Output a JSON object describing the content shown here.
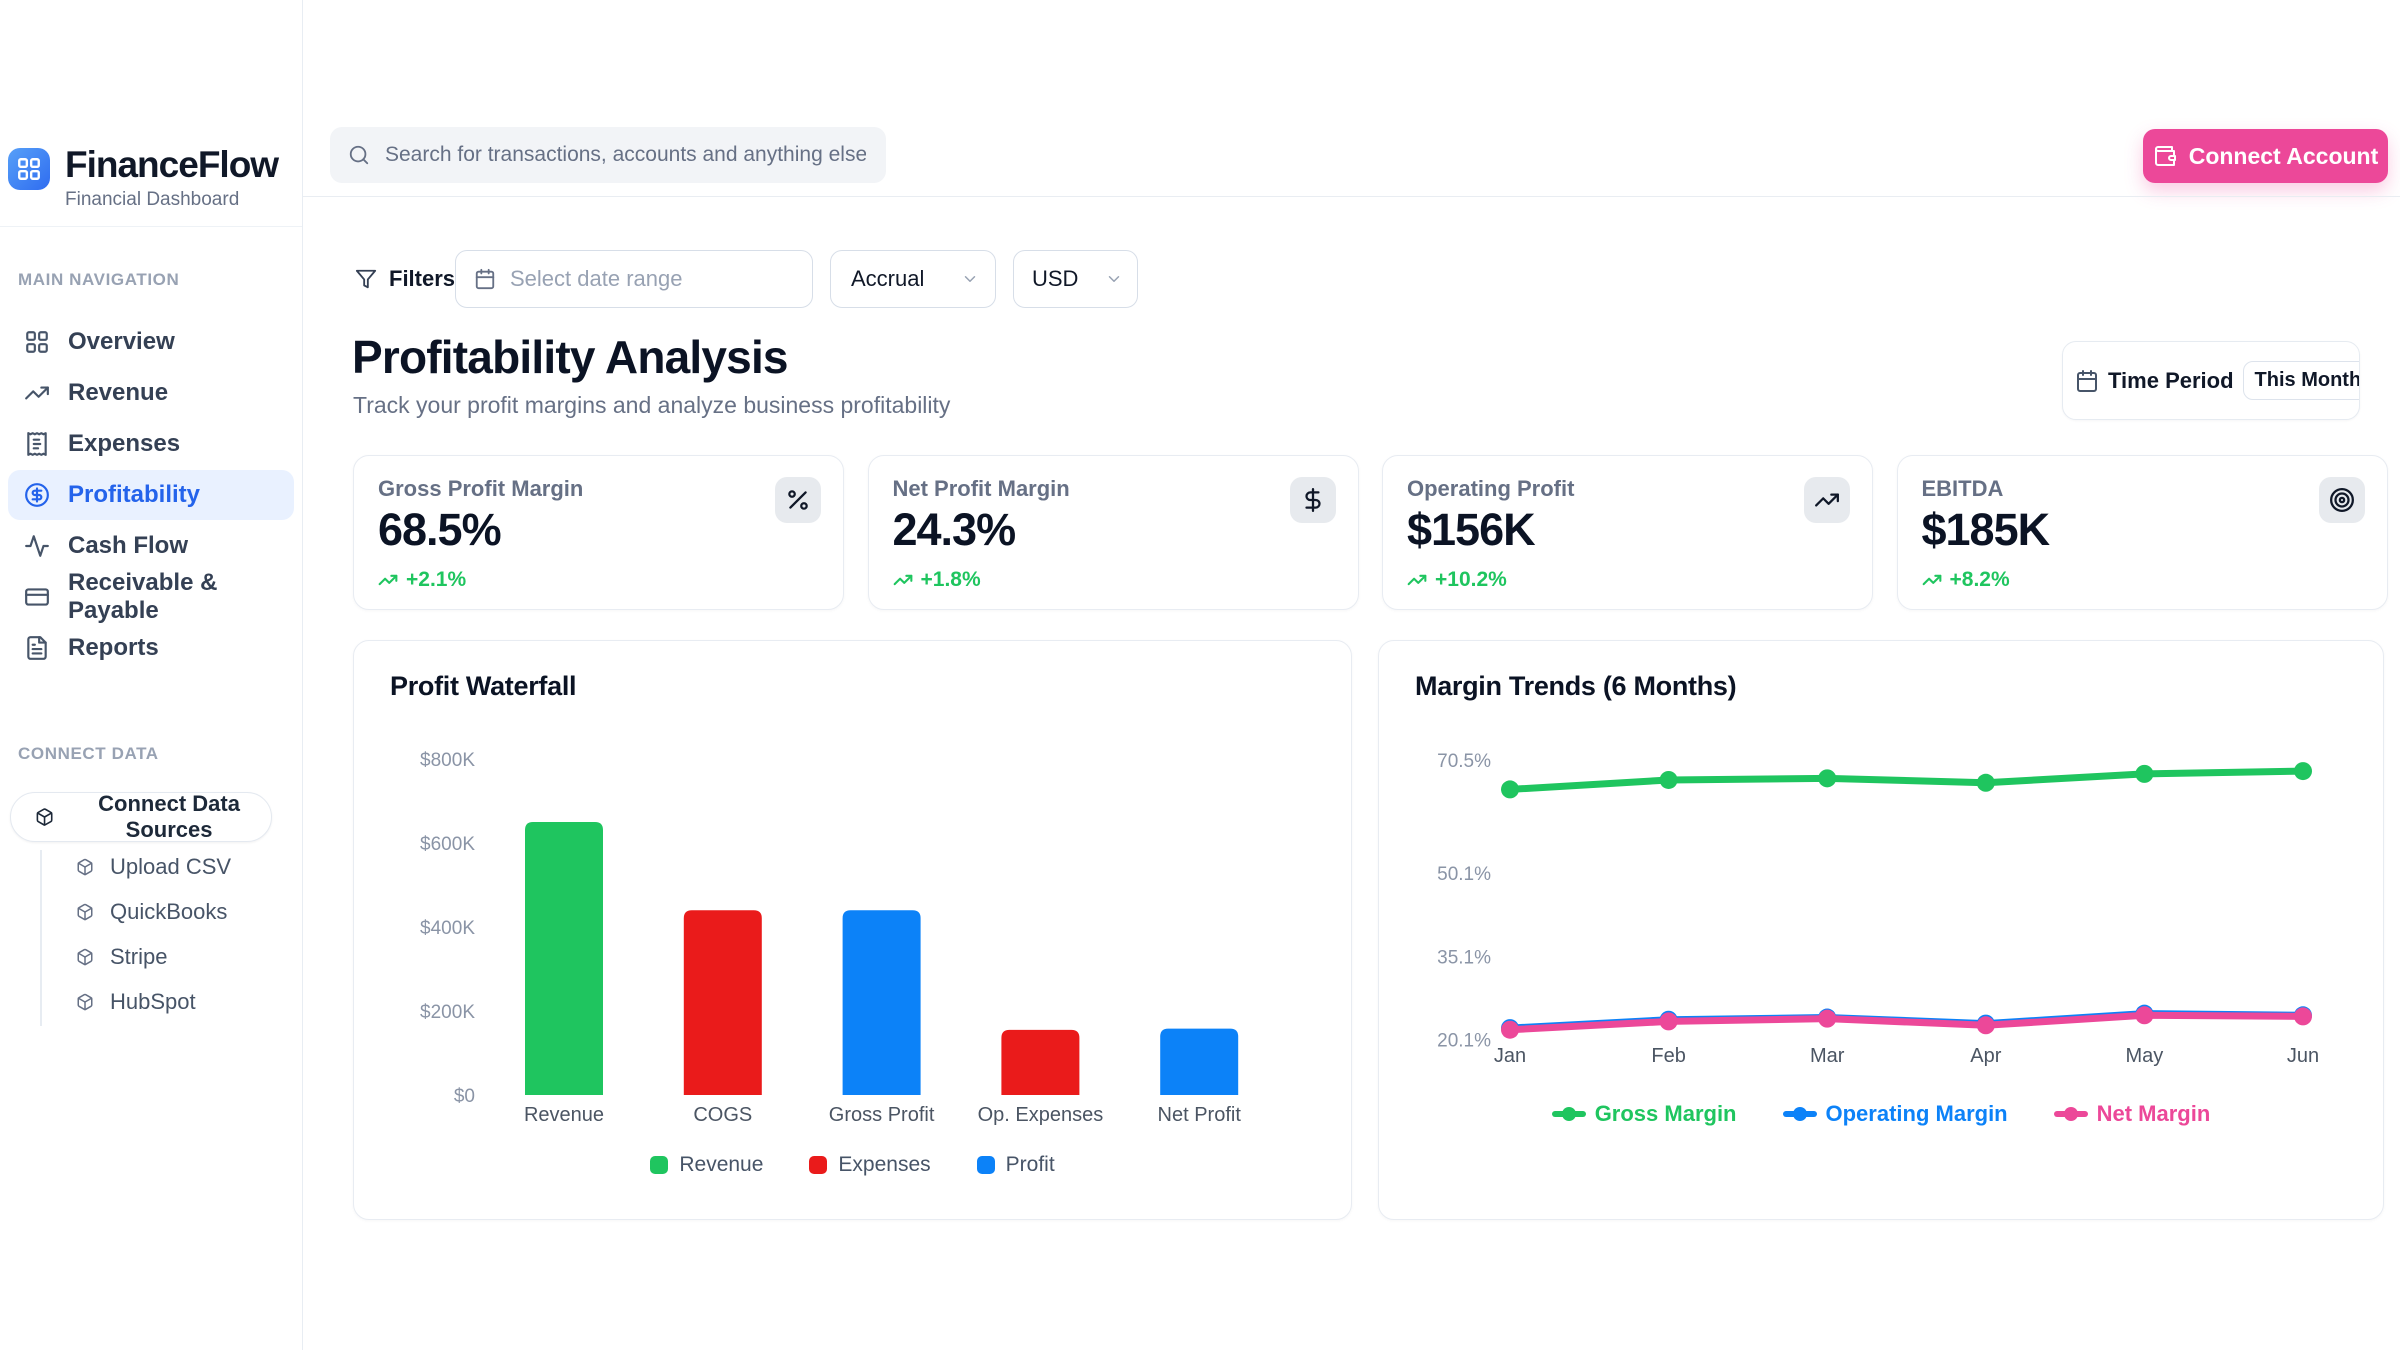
{
  "brand": {
    "name": "FinanceFlow",
    "subtitle": "Financial Dashboard"
  },
  "header": {
    "search_placeholder": "Search for transactions, accounts and anything else financial",
    "connect_account_label": "Connect Account"
  },
  "sidebar": {
    "nav_header": "MAIN NAVIGATION",
    "items": [
      {
        "label": "Overview",
        "icon": "layout-grid",
        "active": false
      },
      {
        "label": "Revenue",
        "icon": "trending-up",
        "active": false
      },
      {
        "label": "Expenses",
        "icon": "receipt",
        "active": false
      },
      {
        "label": "Profitability",
        "icon": "circle-dollar",
        "active": true
      },
      {
        "label": "Cash Flow",
        "icon": "activity",
        "active": false
      },
      {
        "label": "Receivable & Payable",
        "icon": "credit-card",
        "active": false
      },
      {
        "label": "Reports",
        "icon": "file-text",
        "active": false
      }
    ],
    "connect_header": "CONNECT DATA",
    "connect_button": {
      "label": "Connect Data Sources",
      "icon": "cube"
    },
    "connect_items": [
      {
        "label": "Upload CSV",
        "icon": "cube"
      },
      {
        "label": "QuickBooks",
        "icon": "cube"
      },
      {
        "label": "Stripe",
        "icon": "cube"
      },
      {
        "label": "HubSpot",
        "icon": "cube"
      }
    ]
  },
  "filters": {
    "label": "Filters",
    "date_placeholder": "Select date range",
    "basis_value": "Accrual",
    "currency_value": "USD"
  },
  "page_header": {
    "title": "Profitability Analysis",
    "subtitle": "Track your profit margins and analyze business profitability"
  },
  "time_period": {
    "label": "Time Period",
    "value": "This Month"
  },
  "kpis": [
    {
      "label": "Gross Profit Margin",
      "value": "68.5%",
      "delta": "+2.1%",
      "icon": "percent"
    },
    {
      "label": "Net Profit Margin",
      "value": "24.3%",
      "delta": "+1.8%",
      "icon": "dollar-sign"
    },
    {
      "label": "Operating Profit",
      "value": "$156K",
      "delta": "+10.2%",
      "icon": "trending-up"
    },
    {
      "label": "EBITDA",
      "value": "$185K",
      "delta": "+8.2%",
      "icon": "target"
    }
  ],
  "colors": {
    "green": "#1fc55f",
    "red": "#ea1b1b",
    "blue": "#0c82f8",
    "pink": "#ec4899",
    "positive": "#1fc55f",
    "accent_blue": "#2463eb",
    "brand_pink": "#ec4899"
  },
  "chart_data": [
    {
      "type": "bar",
      "title": "Profit Waterfall",
      "categories": [
        "Revenue",
        "COGS",
        "Gross Profit",
        "Op. Expenses",
        "Net Profit"
      ],
      "values": [
        650000,
        440000,
        440000,
        155000,
        158000
      ],
      "bar_colors": [
        "green",
        "red",
        "blue",
        "red",
        "blue"
      ],
      "y_ticks": [
        {
          "label": "$800K",
          "value": 800000
        },
        {
          "label": "$600K",
          "value": 600000
        },
        {
          "label": "$400K",
          "value": 400000
        },
        {
          "label": "$200K",
          "value": 200000
        },
        {
          "label": "$0",
          "value": 0
        }
      ],
      "ylim": [
        0,
        800000
      ],
      "grid": false,
      "legend_position": "bottom",
      "legend": [
        {
          "label": "Revenue",
          "color": "green"
        },
        {
          "label": "Expenses",
          "color": "red"
        },
        {
          "label": "Profit",
          "color": "blue"
        }
      ]
    },
    {
      "type": "line",
      "title": "Margin Trends (6 Months)",
      "x": [
        "Jan",
        "Feb",
        "Mar",
        "Apr",
        "May",
        "Jun"
      ],
      "series": [
        {
          "name": "Gross Margin",
          "color": "green",
          "values": [
            65.2,
            66.9,
            67.2,
            66.4,
            68.0,
            68.5
          ]
        },
        {
          "name": "Operating Margin",
          "color": "blue",
          "values": [
            22.2,
            23.7,
            24.1,
            23.0,
            24.8,
            24.5
          ]
        },
        {
          "name": "Net Margin",
          "color": "pink",
          "values": [
            21.9,
            23.4,
            23.9,
            22.7,
            24.5,
            24.3
          ]
        }
      ],
      "y_ticks": [
        {
          "label": "70.5%",
          "value": 70.5
        },
        {
          "label": "50.1%",
          "value": 50.1
        },
        {
          "label": "35.1%",
          "value": 35.1
        },
        {
          "label": "20.1%",
          "value": 20.1
        }
      ],
      "ylim": [
        20,
        72
      ],
      "grid": false,
      "legend_position": "bottom"
    }
  ]
}
